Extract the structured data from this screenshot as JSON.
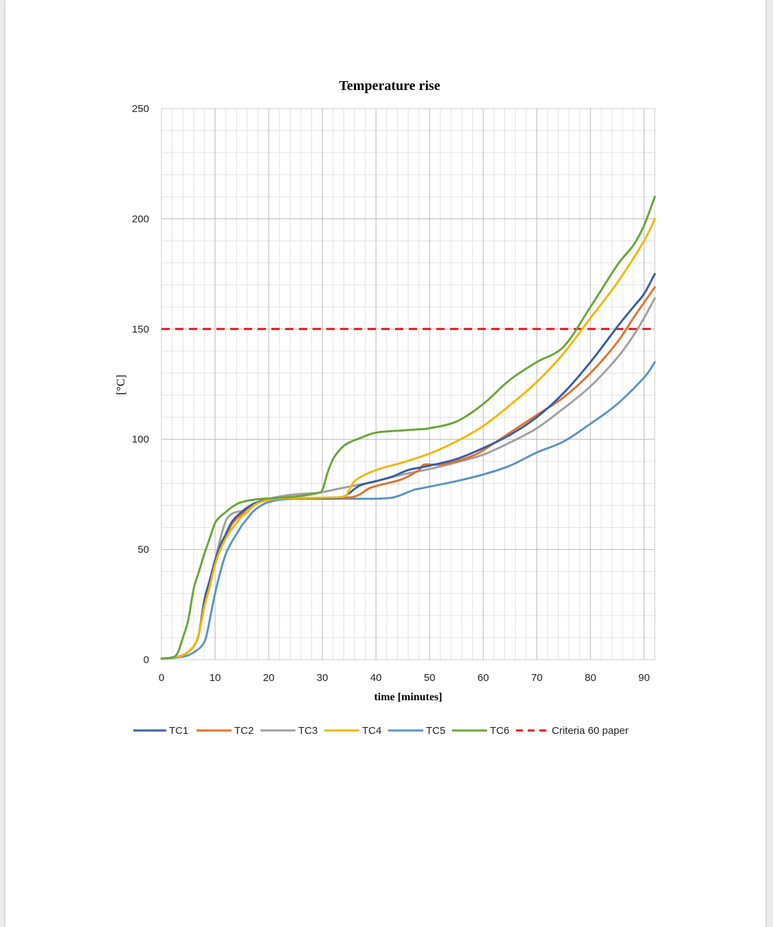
{
  "colors": {
    "TC1": "#3a5da5",
    "TC2": "#e0712c",
    "TC3": "#a0a0a0",
    "TC4": "#f2b705",
    "TC5": "#5b93c7",
    "TC6": "#6ba43a",
    "criteria": "#e8141b",
    "grid_major": "#b8b8b8",
    "grid_minor": "#e2e2e2"
  },
  "chart_data": {
    "type": "line",
    "title": "Temperature rise",
    "xlabel": "time [minutes]",
    "ylabel": "[°C]",
    "xlim": [
      0,
      92
    ],
    "ylim": [
      0,
      250
    ],
    "xticks": [
      0,
      10,
      20,
      30,
      40,
      50,
      60,
      70,
      80,
      90
    ],
    "yticks": [
      0,
      50,
      100,
      150,
      200,
      250
    ],
    "grid": true,
    "legend_position": "bottom",
    "series": [
      {
        "name": "TC1",
        "color_key": "TC1",
        "x": [
          0,
          2,
          4,
          6,
          7,
          8,
          9,
          10,
          11,
          12,
          13,
          14,
          15,
          16,
          17,
          18,
          20,
          22,
          25,
          30,
          33,
          34,
          35,
          37,
          40,
          43,
          46,
          50,
          55,
          60,
          65,
          70,
          75,
          80,
          85,
          88,
          90,
          92
        ],
        "y": [
          0.5,
          1,
          2,
          6,
          12,
          27,
          36,
          45,
          52,
          57,
          62,
          65,
          67,
          69,
          70.5,
          71.5,
          72.5,
          73,
          73.2,
          73.2,
          73.4,
          74,
          75.5,
          79,
          81,
          83,
          86,
          88,
          91,
          96,
          102,
          110,
          121,
          135,
          151,
          160,
          166,
          175
        ]
      },
      {
        "name": "TC2",
        "color_key": "TC2",
        "x": [
          0,
          2,
          4,
          6,
          7,
          8,
          9,
          10,
          11,
          12,
          13,
          14,
          15,
          16,
          17,
          18,
          20,
          22,
          25,
          30,
          35,
          36,
          37,
          39,
          42,
          45,
          48,
          49,
          52,
          55,
          58,
          60,
          65,
          70,
          75,
          80,
          85,
          88,
          90,
          92
        ],
        "y": [
          0.5,
          1,
          2,
          6,
          12,
          25,
          34,
          44,
          51,
          56,
          61,
          64,
          66,
          68.5,
          70,
          71.5,
          72.5,
          73,
          73.3,
          73.4,
          73.6,
          74,
          75,
          78,
          80,
          82,
          86,
          88.5,
          88.5,
          90,
          92.5,
          95,
          103,
          111,
          119,
          130,
          144,
          155,
          162,
          169
        ]
      },
      {
        "name": "TC3",
        "color_key": "TC3",
        "x": [
          0,
          2,
          4,
          6,
          7,
          8,
          9,
          10,
          11,
          12,
          13,
          14,
          15,
          16,
          17,
          18,
          20,
          22,
          25,
          28,
          30,
          33,
          36,
          40,
          45,
          50,
          55,
          60,
          65,
          70,
          75,
          80,
          85,
          88,
          90,
          92
        ],
        "y": [
          0.5,
          1,
          2,
          6,
          12,
          24,
          35,
          45,
          55,
          63,
          66,
          67,
          67.5,
          69,
          70.5,
          71.5,
          73,
          74,
          75,
          75.5,
          76,
          77.5,
          79,
          81,
          84,
          86.5,
          89.5,
          93,
          98.5,
          105,
          114,
          124,
          137,
          147,
          155,
          164
        ]
      },
      {
        "name": "TC4",
        "color_key": "TC4",
        "x": [
          0,
          2,
          4,
          6,
          7,
          8,
          9,
          10,
          11,
          12,
          13,
          14,
          15,
          16,
          17,
          18,
          20,
          22,
          25,
          30,
          34,
          35,
          36,
          38,
          40,
          42,
          45,
          50,
          55,
          60,
          65,
          70,
          75,
          80,
          85,
          90,
          92
        ],
        "y": [
          0.5,
          1,
          2,
          6,
          12,
          24,
          33,
          43,
          50,
          55,
          59,
          62,
          65,
          67,
          69.5,
          71,
          72.5,
          73,
          73.3,
          73.5,
          74,
          77,
          81,
          84,
          86,
          87.5,
          89.5,
          93.5,
          99,
          106,
          115.5,
          126,
          139,
          155,
          171,
          190,
          200
        ]
      },
      {
        "name": "TC5",
        "color_key": "TC5",
        "x": [
          0,
          3,
          5,
          7,
          8,
          8.5,
          9,
          10,
          11,
          12,
          13,
          14,
          15,
          16,
          17,
          18,
          19,
          20,
          22,
          25,
          30,
          35,
          40,
          43,
          45,
          47,
          48,
          50,
          55,
          60,
          65,
          70,
          75,
          80,
          85,
          90,
          92
        ],
        "y": [
          0.5,
          1,
          2,
          5,
          8,
          12,
          18,
          30,
          40,
          48,
          53,
          57,
          61,
          64,
          67,
          69,
          70.5,
          71.5,
          72.5,
          73,
          73,
          73,
          73,
          73.5,
          75,
          77,
          77.5,
          78.5,
          81,
          84,
          88,
          94,
          99,
          107,
          116,
          128,
          135
        ]
      },
      {
        "name": "TC6",
        "color_key": "TC6",
        "x": [
          0,
          2,
          3,
          4,
          5,
          6,
          7,
          8,
          9,
          10,
          11,
          12,
          13,
          14,
          15,
          17,
          19,
          21,
          25,
          29,
          30,
          31,
          32,
          33,
          34,
          35,
          37,
          40,
          45,
          48,
          50,
          55,
          60,
          65,
          70,
          75,
          80,
          85,
          88,
          90,
          92
        ],
        "y": [
          0.5,
          1,
          3,
          10,
          18,
          32,
          40,
          48,
          55,
          62,
          65,
          67,
          69,
          70.5,
          71.5,
          72.5,
          73,
          73.3,
          74,
          75.5,
          77,
          85,
          91,
          94.5,
          97,
          98.5,
          100.5,
          103,
          104,
          104.5,
          105,
          108,
          116,
          127,
          135,
          142,
          160,
          179,
          188,
          197,
          210
        ]
      },
      {
        "name": "Criteria 60 paper",
        "color_key": "criteria",
        "dashed": true,
        "x": [
          0,
          92
        ],
        "y": [
          150,
          150
        ]
      }
    ]
  }
}
